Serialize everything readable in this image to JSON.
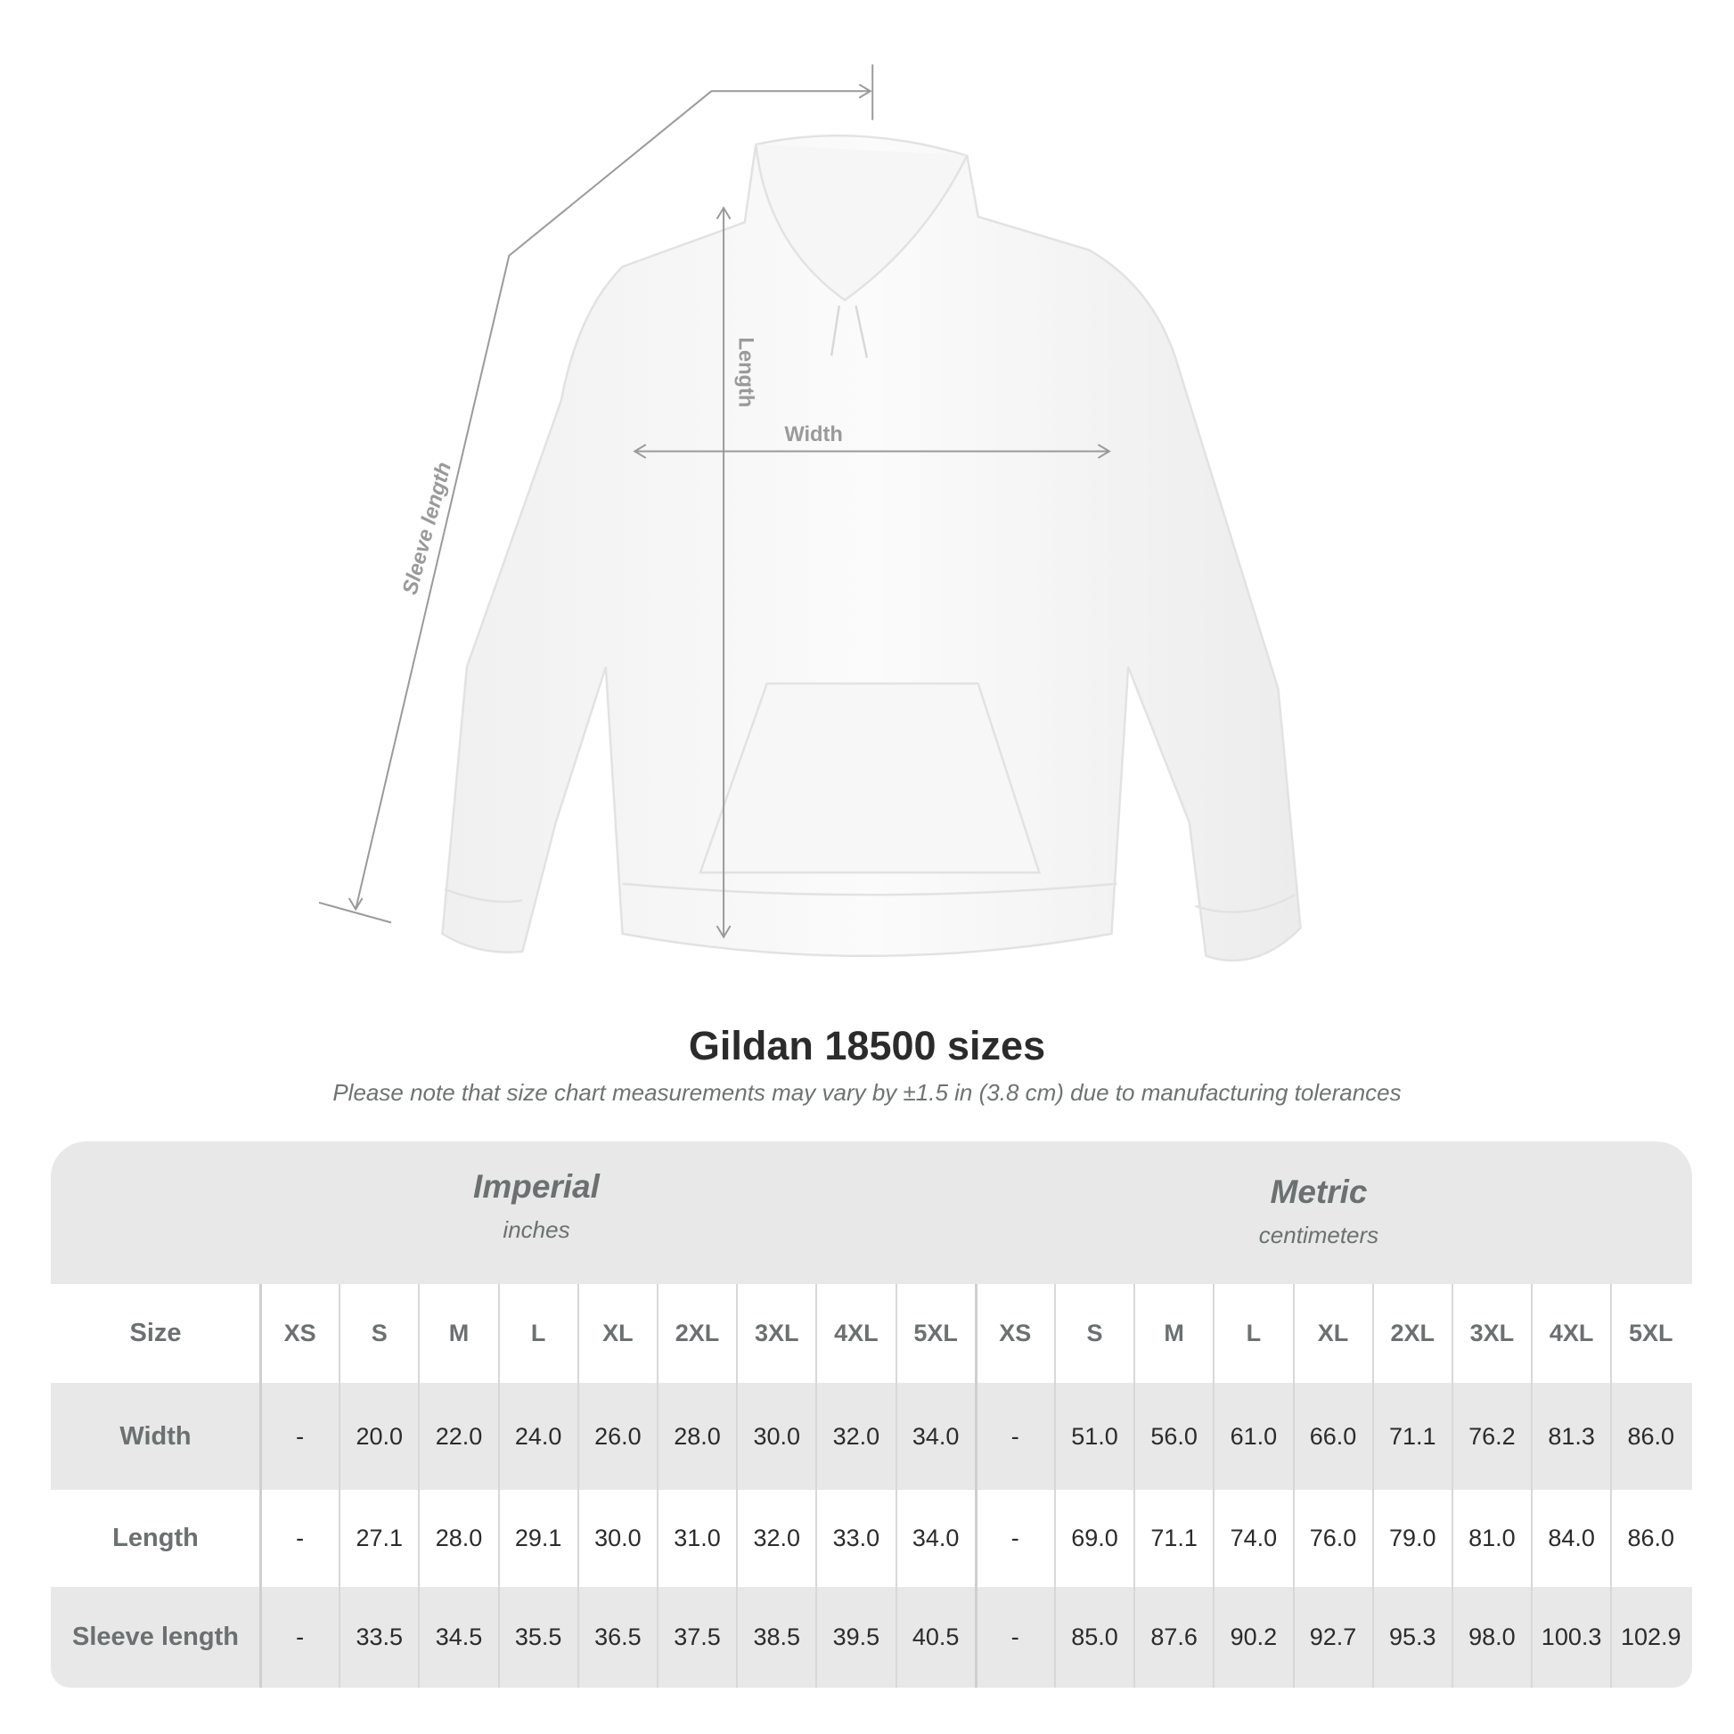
{
  "diagram": {
    "labels": {
      "length": "Length",
      "width": "Width",
      "sleeve": "Sleeve length"
    }
  },
  "title": "Gildan 18500 sizes",
  "note": "Please note that size chart measurements may vary by ±1.5 in (3.8 cm) due to manufacturing tolerances",
  "table": {
    "imperial": {
      "name": "Imperial",
      "unit": "inches"
    },
    "metric": {
      "name": "Metric",
      "unit": "centimeters"
    },
    "size_label": "Size",
    "sizes": [
      "XS",
      "S",
      "M",
      "L",
      "XL",
      "2XL",
      "3XL",
      "4XL",
      "5XL",
      "XS",
      "S",
      "M",
      "L",
      "XL",
      "2XL",
      "3XL",
      "4XL",
      "5XL"
    ],
    "rows": [
      {
        "label": "Width",
        "values": [
          "-",
          "20.0",
          "22.0",
          "24.0",
          "26.0",
          "28.0",
          "30.0",
          "32.0",
          "34.0",
          "-",
          "51.0",
          "56.0",
          "61.0",
          "66.0",
          "71.1",
          "76.2",
          "81.3",
          "86.0"
        ]
      },
      {
        "label": "Length",
        "values": [
          "-",
          "27.1",
          "28.0",
          "29.1",
          "30.0",
          "31.0",
          "32.0",
          "33.0",
          "34.0",
          "-",
          "69.0",
          "71.1",
          "74.0",
          "76.0",
          "79.0",
          "81.0",
          "84.0",
          "86.0"
        ]
      },
      {
        "label": "Sleeve length",
        "values": [
          "-",
          "33.5",
          "34.5",
          "35.5",
          "36.5",
          "37.5",
          "38.5",
          "39.5",
          "40.5",
          "-",
          "85.0",
          "87.6",
          "90.2",
          "92.7",
          "95.3",
          "98.0",
          "100.3",
          "102.9"
        ]
      }
    ]
  }
}
